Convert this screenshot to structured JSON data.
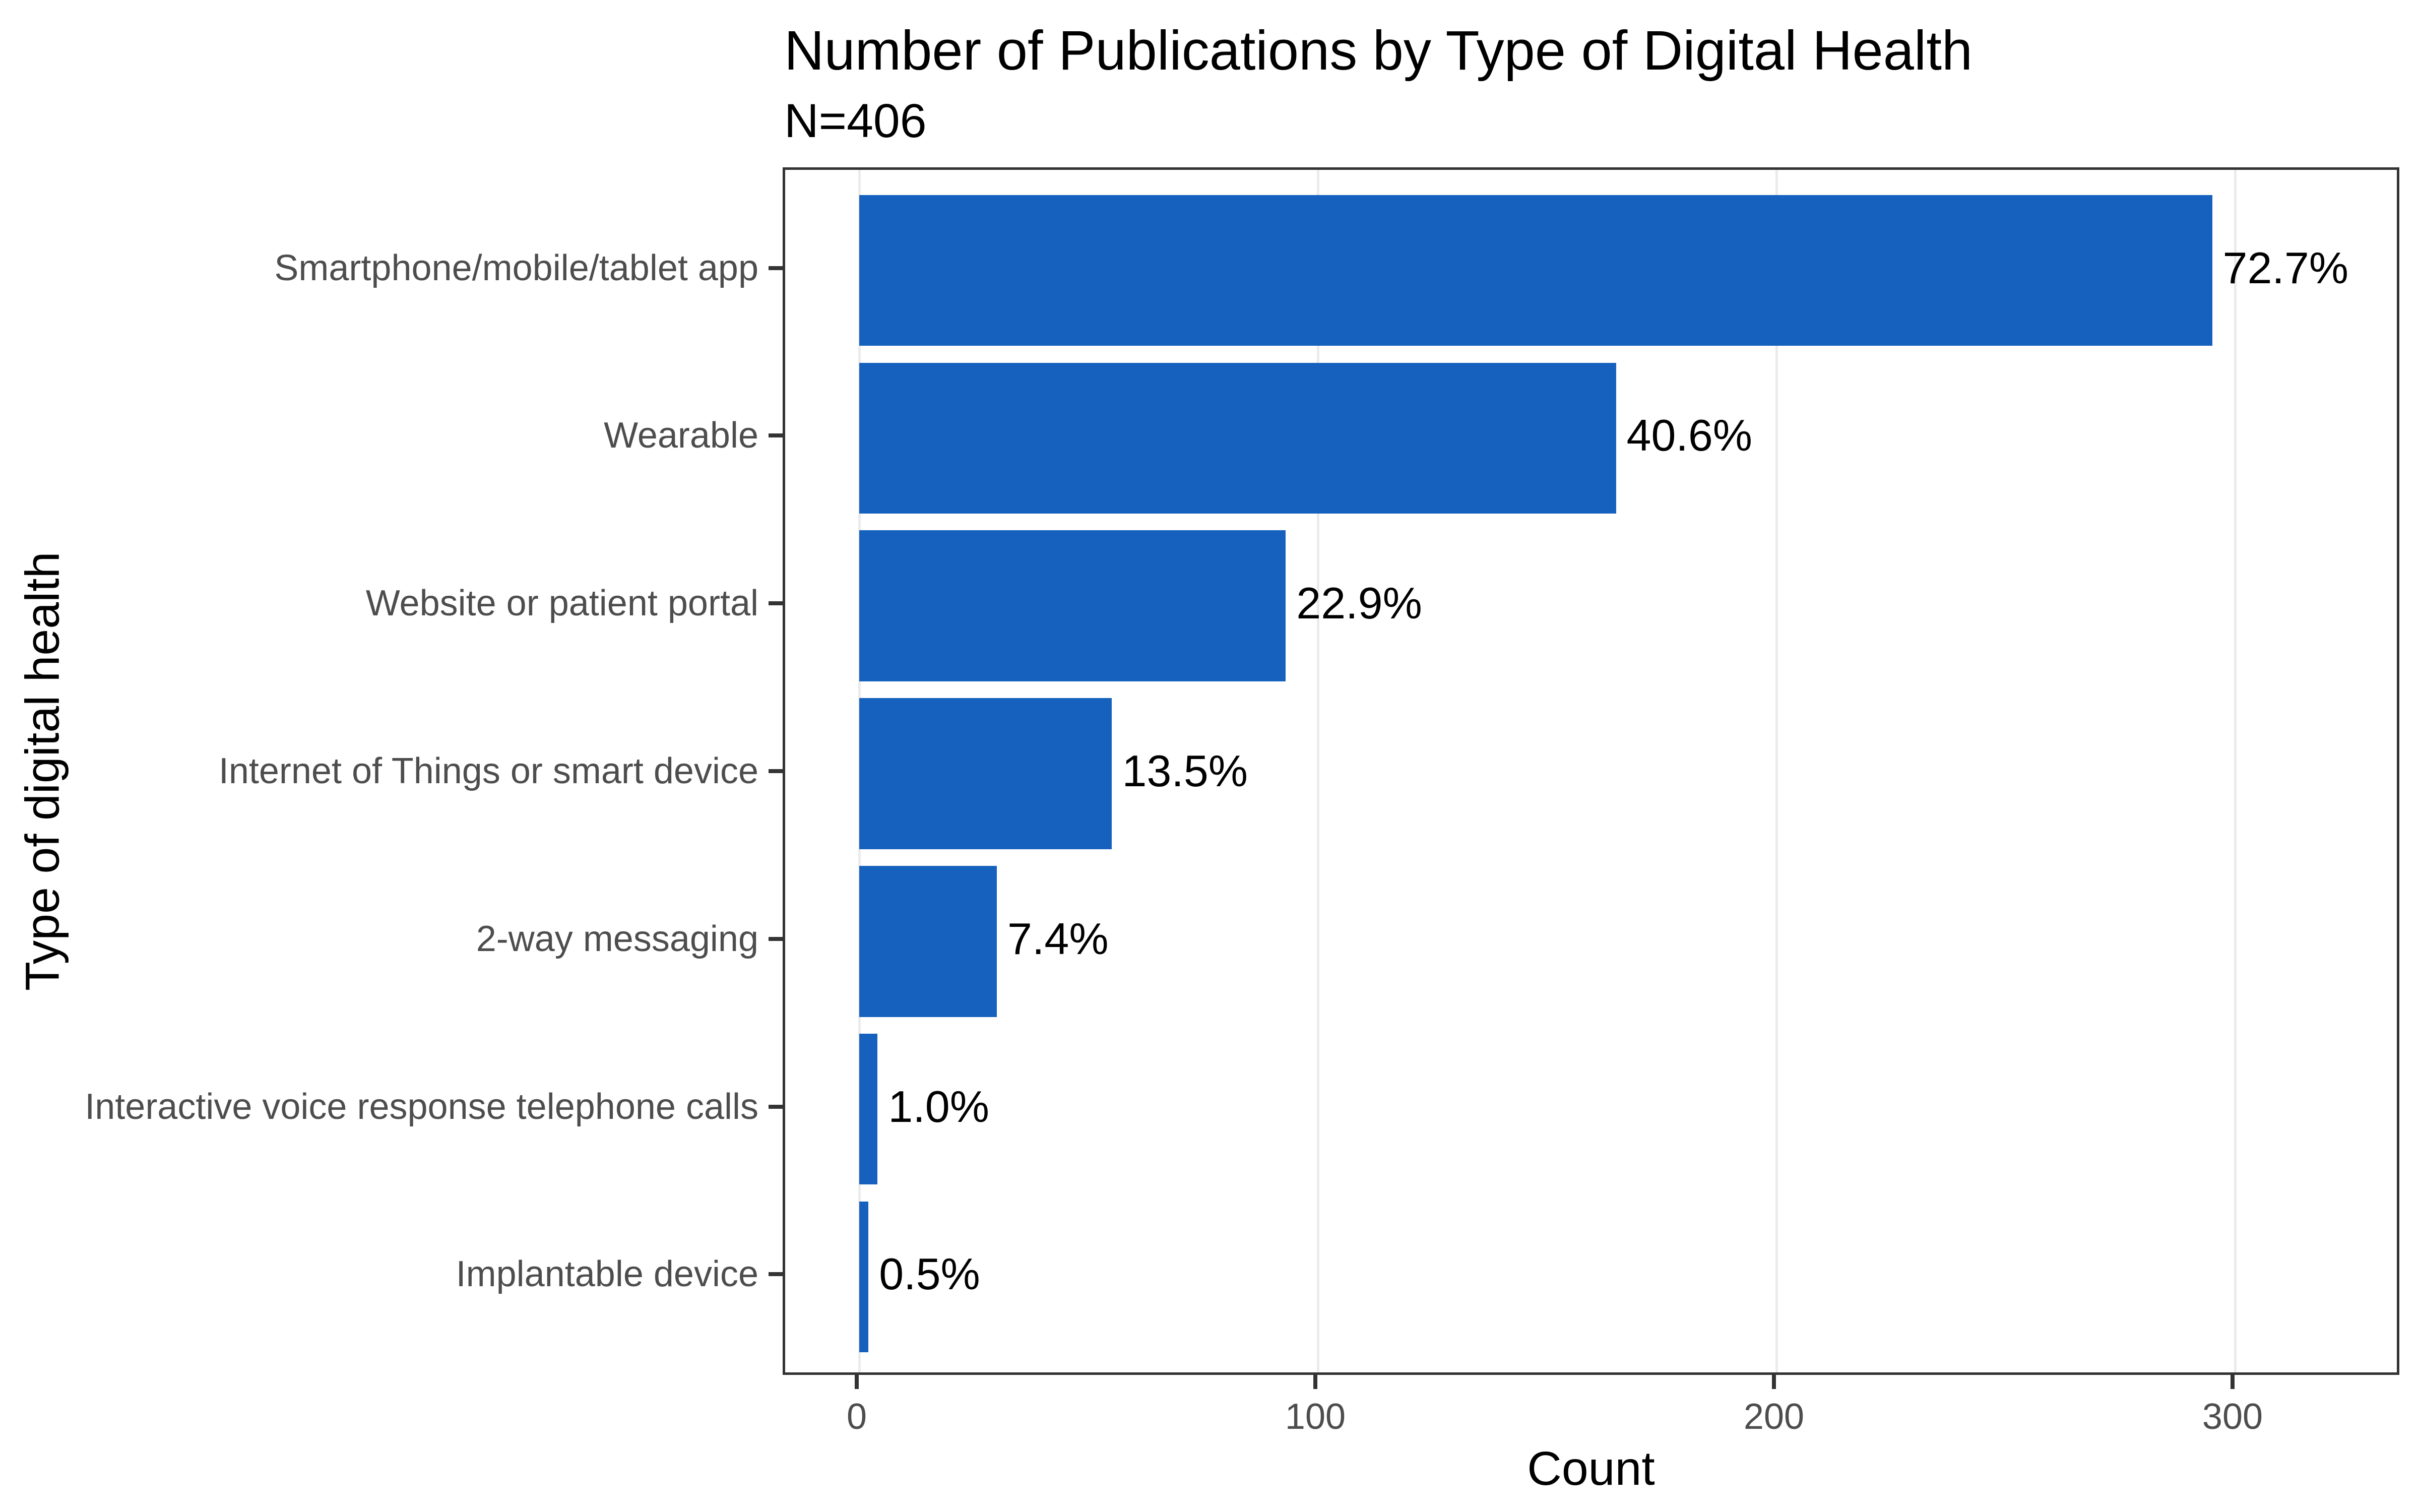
{
  "title": "Number of Publications by Type of Digital Health",
  "subtitle": "N=406",
  "chart_data": {
    "type": "bar",
    "orientation": "horizontal",
    "title": "Number of Publications by Type of Digital Health",
    "subtitle": "N=406",
    "n_total": 406,
    "xlabel": "Count",
    "ylabel": "Type of digital health",
    "categories": [
      "Smartphone/mobile/tablet app",
      "Wearable",
      "Website or patient portal",
      "Internet of Things or smart device",
      "2-way messaging",
      "Interactive voice response telephone calls",
      "Implantable device"
    ],
    "values": [
      295,
      165,
      93,
      55,
      30,
      4,
      2
    ],
    "percent_labels": [
      "72.7%",
      "40.6%",
      "22.9%",
      "13.5%",
      "7.4%",
      "1.0%",
      "0.5%"
    ],
    "x_ticks": [
      0,
      100,
      200,
      300
    ],
    "xlim": [
      0,
      336
    ],
    "grid": "vertical major gridlines only",
    "legend_position": "none",
    "colors": {
      "bar": "#1661BE",
      "panel_border": "#333333",
      "gridline": "#EBEBEB",
      "axis_text": "#4D4D4D",
      "text": "#000000",
      "background": "#FFFFFF"
    }
  }
}
